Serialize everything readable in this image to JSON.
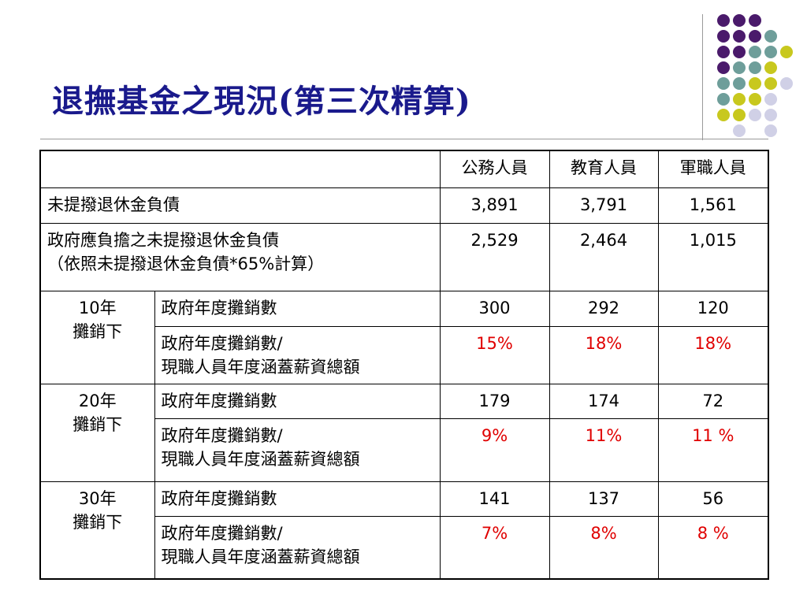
{
  "title": "退撫基金之現況(第三次精算)",
  "decor": {
    "colors": {
      "purple": "#4a1a6b",
      "teal": "#6e9e9a",
      "yellow": "#c8c81e",
      "lavender": "#d0d0e6"
    }
  },
  "table": {
    "headers": [
      "",
      "公務人員",
      "教育人員",
      "軍職人員"
    ],
    "row1": {
      "label": "未提撥退休金負債",
      "values": [
        "3,891",
        "3,791",
        "1,561"
      ]
    },
    "row2": {
      "label_line1": "政府應負擔之未提撥退休金負債",
      "label_line2": "（依照未提撥退休金負債*65%計算）",
      "values": [
        "2,529",
        "2,464",
        "1,015"
      ]
    },
    "groups": [
      {
        "period_line1": "10年",
        "period_line2": "攤銷下",
        "amort_label": "政府年度攤銷數",
        "amort_values": [
          "300",
          "292",
          "120"
        ],
        "ratio_label_line1": "政府年度攤銷數/",
        "ratio_label_line2": "現職人員年度涵蓋薪資總額",
        "ratio_values": [
          "15%",
          "18%",
          "18%"
        ]
      },
      {
        "period_line1": "20年",
        "period_line2": "攤銷下",
        "amort_label": "政府年度攤銷數",
        "amort_values": [
          "179",
          "174",
          "72"
        ],
        "ratio_label_line1": "政府年度攤銷數/",
        "ratio_label_line2": "現職人員年度涵蓋薪資總額",
        "ratio_values": [
          "9%",
          "11%",
          "11 %"
        ]
      },
      {
        "period_line1": "30年",
        "period_line2": "攤銷下",
        "amort_label": "政府年度攤銷數",
        "amort_values": [
          "141",
          "137",
          "56"
        ],
        "ratio_label_line1": "政府年度攤銷數/",
        "ratio_label_line2": "現職人員年度涵蓋薪資總額",
        "ratio_values": [
          "7%",
          "8%",
          "8 %"
        ]
      }
    ]
  }
}
